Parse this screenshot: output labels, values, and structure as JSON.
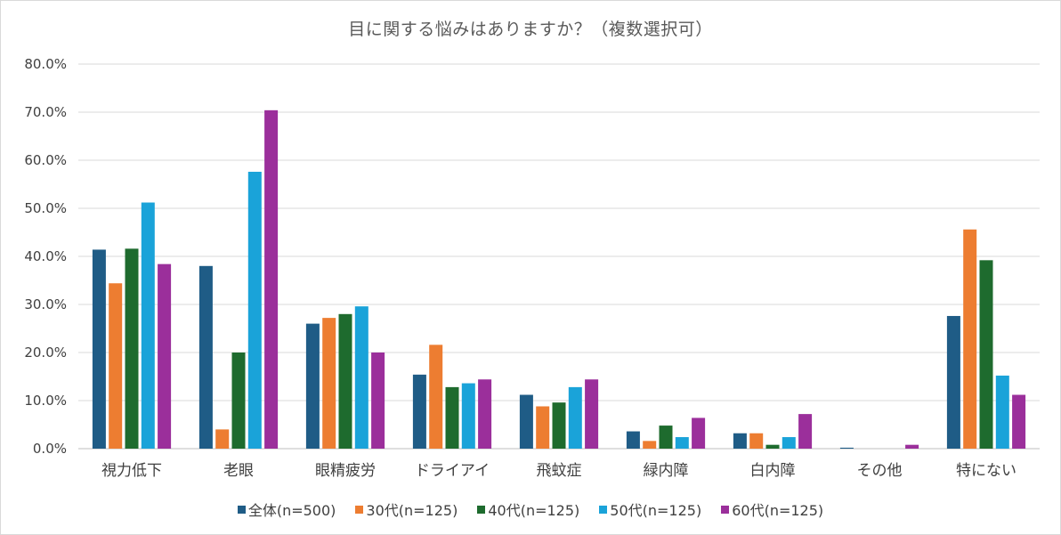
{
  "chart_data": {
    "type": "bar",
    "title": "目に関する悩みはありますか？（複数選択可）",
    "categories": [
      "視力低下",
      "老眼",
      "眼精疲労",
      "ドライアイ",
      "飛蚊症",
      "緑内障",
      "白内障",
      "その他",
      "特にない"
    ],
    "ylim": [
      0,
      80
    ],
    "yticks": [
      "0.0%",
      "10.0%",
      "20.0%",
      "30.0%",
      "40.0%",
      "50.0%",
      "60.0%",
      "70.0%",
      "80.0%"
    ],
    "grid": true,
    "legend_position": "bottom",
    "series": [
      {
        "name": "全体(n=500)",
        "color": "#1f5c86",
        "values": [
          41.4,
          38.0,
          26.0,
          15.4,
          11.2,
          3.6,
          3.2,
          0.2,
          27.6
        ]
      },
      {
        "name": "30代(n=125)",
        "color": "#ed7d31",
        "values": [
          34.4,
          4.0,
          27.2,
          21.6,
          8.8,
          1.6,
          3.2,
          0.0,
          45.6
        ]
      },
      {
        "name": "40代(n=125)",
        "color": "#1e6b2e",
        "values": [
          41.6,
          20.0,
          28.0,
          12.8,
          9.6,
          4.8,
          0.8,
          0.0,
          39.2
        ]
      },
      {
        "name": "50代(n=125)",
        "color": "#1aa3d9",
        "values": [
          51.2,
          57.6,
          29.6,
          13.6,
          12.8,
          2.4,
          2.4,
          0.0,
          15.2
        ]
      },
      {
        "name": "60代(n=125)",
        "color": "#9b2f9b",
        "values": [
          38.4,
          70.4,
          20.0,
          14.4,
          14.4,
          6.4,
          7.2,
          0.8,
          11.2
        ]
      }
    ]
  }
}
